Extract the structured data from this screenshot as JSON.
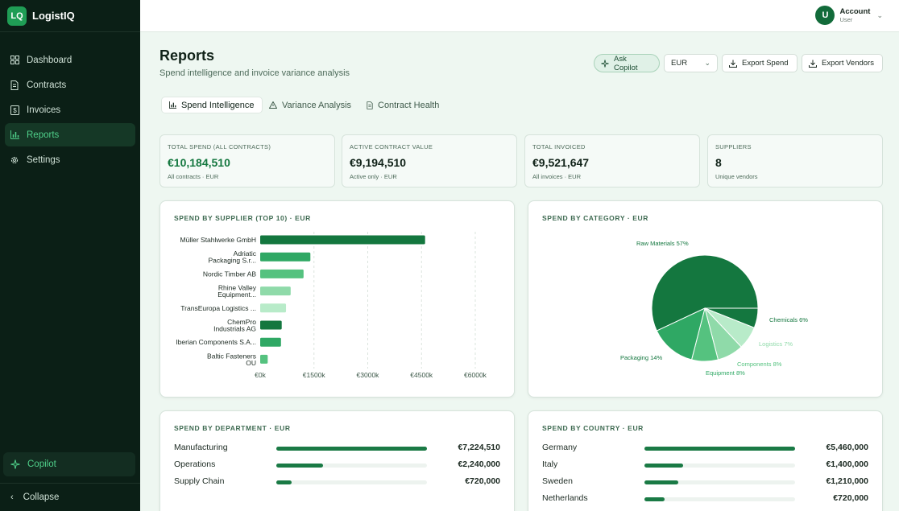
{
  "app": {
    "logo": "LQ",
    "name": "LogistIQ"
  },
  "sidebar": {
    "items": [
      {
        "label": "Dashboard",
        "icon": "dashboard-icon"
      },
      {
        "label": "Contracts",
        "icon": "document-icon"
      },
      {
        "label": "Invoices",
        "icon": "invoice-icon"
      },
      {
        "label": "Reports",
        "icon": "bar-chart-icon",
        "active": true
      },
      {
        "label": "Settings",
        "icon": "gear-icon"
      }
    ],
    "copilot": "Copilot",
    "collapse": "Collapse"
  },
  "account": {
    "initial": "U",
    "name": "Account",
    "role": "User"
  },
  "header": {
    "title": "Reports",
    "subtitle": "Spend intelligence and invoice variance analysis",
    "ask_copilot": "Ask Copilot",
    "currency": "EUR",
    "export_spend": "Export Spend",
    "export_vendors": "Export Vendors"
  },
  "tabs": [
    {
      "label": "Spend Intelligence",
      "active": true
    },
    {
      "label": "Variance Analysis"
    },
    {
      "label": "Contract Health"
    }
  ],
  "kpis": [
    {
      "label": "TOTAL SPEND (ALL CONTRACTS)",
      "value": "€10,184,510",
      "sub": "All contracts · EUR"
    },
    {
      "label": "ACTIVE CONTRACT VALUE",
      "value": "€9,194,510",
      "sub": "Active only · EUR"
    },
    {
      "label": "TOTAL INVOICED",
      "value": "€9,521,647",
      "sub": "All invoices · EUR"
    },
    {
      "label": "SUPPLIERS",
      "value": "8",
      "sub": "Unique vendors"
    }
  ],
  "panels": {
    "supplier_title": "SPEND BY SUPPLIER (TOP 10) · EUR",
    "category_title": "SPEND BY CATEGORY · EUR",
    "department_title": "SPEND BY DEPARTMENT · EUR",
    "country_title": "SPEND BY COUNTRY · EUR"
  },
  "colors": {
    "dark_green": "#14773f",
    "green": "#2fa864",
    "mid_green": "#55c27f",
    "light_green": "#8fdaa9",
    "pale_green": "#b8ebc9"
  },
  "chart_data": [
    {
      "type": "bar",
      "orientation": "horizontal",
      "title": "SPEND BY SUPPLIER (TOP 10) · EUR",
      "categories": [
        [
          "Müller Stahlwerke GmbH"
        ],
        [
          "Adriatic",
          "Packaging S.r..."
        ],
        [
          "Nordic Timber AB"
        ],
        [
          "Rhine Valley",
          "Equipment..."
        ],
        [
          "TransEuropa Logistics ..."
        ],
        [
          "ChemPro",
          "Industrials AG"
        ],
        [
          "Iberian Components S.A..."
        ],
        [
          "Baltic Fasteners",
          "OU"
        ]
      ],
      "values": [
        4600000,
        1400000,
        1210000,
        850000,
        720000,
        600000,
        580000,
        210000
      ],
      "bar_colors": [
        "#14773f",
        "#2fa864",
        "#55c27f",
        "#8fdaa9",
        "#b8ebc9",
        "#14773f",
        "#2fa864",
        "#55c27f"
      ],
      "xticks": [
        "€0k",
        "€1500k",
        "€3000k",
        "€4500k",
        "€6000k"
      ],
      "xlim": [
        0,
        6000000
      ]
    },
    {
      "type": "pie",
      "title": "SPEND BY CATEGORY · EUR",
      "slices": [
        {
          "label": "Raw Materials 57%",
          "value": 57,
          "color": "#14773f"
        },
        {
          "label": "Chemicals 6%",
          "value": 6,
          "color": "#14773f"
        },
        {
          "label": "Logistics 7%",
          "value": 7,
          "color": "#b8ebc9"
        },
        {
          "label": "Components 8%",
          "value": 8,
          "color": "#8fdaa9"
        },
        {
          "label": "Equipment 8%",
          "value": 8,
          "color": "#55c27f"
        },
        {
          "label": "Packaging 14%",
          "value": 14,
          "color": "#2fa864"
        }
      ]
    },
    {
      "type": "bar",
      "title": "SPEND BY DEPARTMENT · EUR",
      "rows": [
        {
          "label": "Manufacturing",
          "value": "€7,224,510",
          "fraction": 1.0
        },
        {
          "label": "Operations",
          "value": "€2,240,000",
          "fraction": 0.31
        },
        {
          "label": "Supply Chain",
          "value": "€720,000",
          "fraction": 0.1
        }
      ]
    },
    {
      "type": "bar",
      "title": "SPEND BY COUNTRY · EUR",
      "rows": [
        {
          "label": "Germany",
          "value": "€5,460,000",
          "fraction": 1.0
        },
        {
          "label": "Italy",
          "value": "€1,400,000",
          "fraction": 0.256
        },
        {
          "label": "Sweden",
          "value": "€1,210,000",
          "fraction": 0.222
        },
        {
          "label": "Netherlands",
          "value": "€720,000",
          "fraction": 0.132
        }
      ]
    }
  ]
}
